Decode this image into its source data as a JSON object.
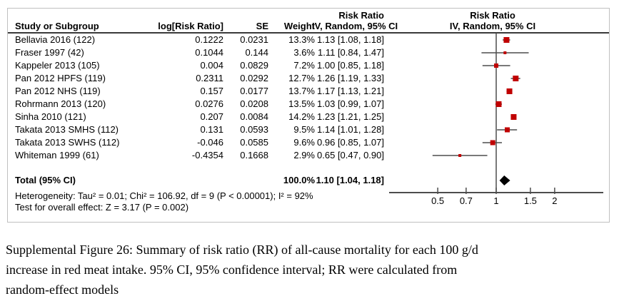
{
  "colors": {
    "marker_red": "#c00000",
    "plot_line": "#4d4d4d",
    "diamond": "#000000",
    "box_border": "#c0c0c0",
    "header_rule": "#3a3a3a",
    "text": "#000000"
  },
  "table": {
    "headers": {
      "study": "Study or Subgroup",
      "log_rr": "log[Risk Ratio]",
      "se": "SE",
      "weight": "Weight",
      "stat_col_line1": "Risk Ratio",
      "stat_col_line2": "IV, Random, 95% CI",
      "plot_col_line1": "Risk Ratio",
      "plot_col_line2": "IV, Random, 95% CI"
    },
    "rows": [
      {
        "study": "Bellavia 2016 (122)",
        "log_rr": "0.1222",
        "se": "0.0231",
        "weight": "13.3%",
        "ci_text": "1.13 [1.08, 1.18]"
      },
      {
        "study": "Fraser 1997 (42)",
        "log_rr": "0.1044",
        "se": "0.144",
        "weight": "3.6%",
        "ci_text": "1.11 [0.84, 1.47]"
      },
      {
        "study": "Kappeler 2013 (105)",
        "log_rr": "0.004",
        "se": "0.0829",
        "weight": "7.2%",
        "ci_text": "1.00 [0.85, 1.18]"
      },
      {
        "study": "Pan 2012 HPFS (119)",
        "log_rr": "0.2311",
        "se": "0.0292",
        "weight": "12.7%",
        "ci_text": "1.26 [1.19, 1.33]"
      },
      {
        "study": "Pan 2012 NHS (119)",
        "log_rr": "0.157",
        "se": "0.0177",
        "weight": "13.7%",
        "ci_text": "1.17 [1.13, 1.21]"
      },
      {
        "study": "Rohrmann 2013 (120)",
        "log_rr": "0.0276",
        "se": "0.0208",
        "weight": "13.5%",
        "ci_text": "1.03 [0.99, 1.07]"
      },
      {
        "study": "Sinha 2010 (121)",
        "log_rr": "0.207",
        "se": "0.0084",
        "weight": "14.2%",
        "ci_text": "1.23 [1.21, 1.25]"
      },
      {
        "study": "Takata 2013 SMHS (112)",
        "log_rr": "0.131",
        "se": "0.0593",
        "weight": "9.5%",
        "ci_text": "1.14 [1.01, 1.28]"
      },
      {
        "study": "Takata 2013 SWHS (112)",
        "log_rr": "-0.046",
        "se": "0.0585",
        "weight": "9.6%",
        "ci_text": "0.96 [0.85, 1.07]"
      },
      {
        "study": "Whiteman 1999 (61)",
        "log_rr": "-0.4354",
        "se": "0.1668",
        "weight": "2.9%",
        "ci_text": "0.65 [0.47, 0.90]"
      }
    ],
    "total": {
      "label": "Total (95% CI)",
      "weight": "100.0%",
      "ci_text": "1.10 [1.04, 1.18]"
    },
    "heterogeneity": "Heterogeneity: Tau² = 0.01; Chi² = 106.92, df = 9 (P < 0.00001); I² = 92%",
    "overall_effect": "Test for overall effect: Z = 3.17 (P = 0.002)"
  },
  "chart_data": {
    "type": "scatter",
    "subtype": "forest-plot",
    "title": "Risk Ratio IV, Random, 95% CI",
    "x_scale": "log",
    "x_ticks": [
      0.5,
      0.7,
      1,
      1.5,
      2
    ],
    "x_tick_labels": [
      "0.5",
      "0.7",
      "1",
      "1.5",
      "2"
    ],
    "reference_line_x": 1,
    "studies": [
      "Bellavia 2016 (122)",
      "Fraser 1997 (42)",
      "Kappeler 2013 (105)",
      "Pan 2012 HPFS (119)",
      "Pan 2012 NHS (119)",
      "Rohrmann 2013 (120)",
      "Sinha 2010 (121)",
      "Takata 2013 SMHS (112)",
      "Takata 2013 SWHS (112)",
      "Whiteman 1999 (61)"
    ],
    "rr": [
      1.13,
      1.11,
      1.0,
      1.26,
      1.17,
      1.03,
      1.23,
      1.14,
      0.96,
      0.65
    ],
    "ci_low": [
      1.08,
      0.84,
      0.85,
      1.19,
      1.13,
      0.99,
      1.21,
      1.01,
      0.85,
      0.47
    ],
    "ci_high": [
      1.18,
      1.47,
      1.18,
      1.33,
      1.21,
      1.07,
      1.25,
      1.28,
      1.07,
      0.9
    ],
    "weights_pct": [
      13.3,
      3.6,
      7.2,
      12.7,
      13.7,
      13.5,
      14.2,
      9.5,
      9.6,
      2.9
    ],
    "total": {
      "label": "Total (95% CI)",
      "rr": 1.1,
      "ci_low": 1.04,
      "ci_high": 1.18,
      "weight_pct": 100.0
    },
    "legend_position": "none",
    "grid": false
  },
  "caption": {
    "lines": [
      "Supplemental Figure 26: Summary of risk ratio (RR) of all-cause mortality for each 100 g/d",
      "increase in red meat intake. 95% CI, 95% confidence interval; RR were calculated from",
      "random-effect models"
    ]
  }
}
